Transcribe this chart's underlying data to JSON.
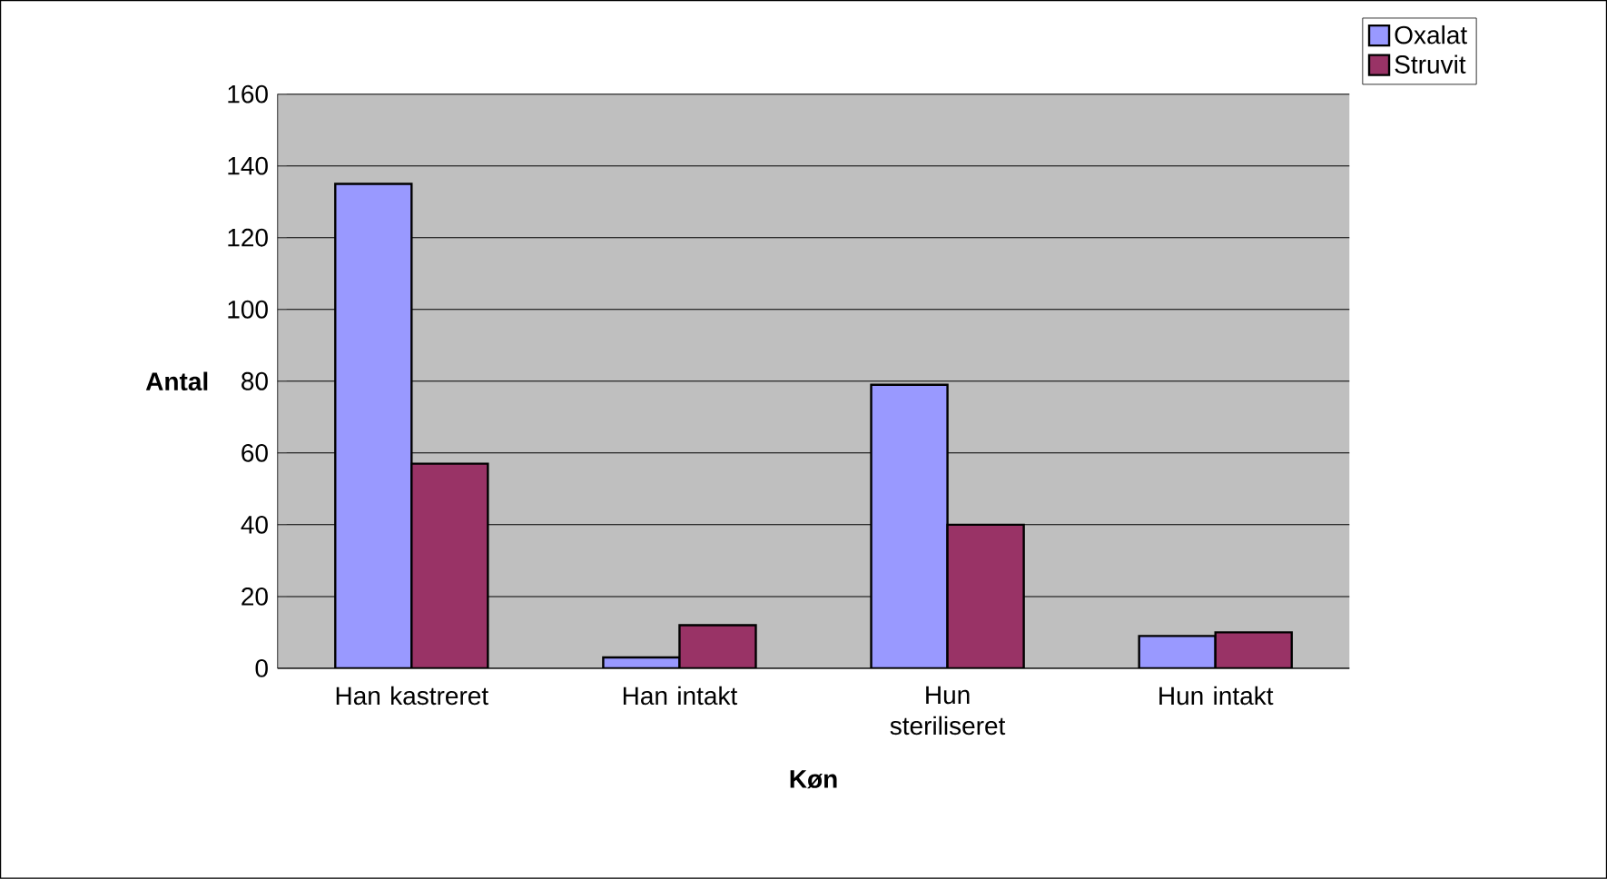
{
  "chart_data": {
    "type": "bar",
    "xlabel": "Køn",
    "ylabel": "Antal",
    "categories": [
      "Han kastreret",
      "Han intakt",
      "Hun steriliseret",
      "Hun intakt"
    ],
    "series": [
      {
        "name": "Oxalat",
        "color": "#9999ff",
        "values": [
          135,
          3,
          79,
          9
        ]
      },
      {
        "name": "Struvit",
        "color": "#993366",
        "values": [
          57,
          12,
          40,
          10
        ]
      }
    ],
    "ylim": [
      0,
      160
    ],
    "yticks": [
      0,
      20,
      40,
      60,
      80,
      100,
      120,
      140,
      160
    ],
    "grid": "y",
    "legend": "top right"
  }
}
